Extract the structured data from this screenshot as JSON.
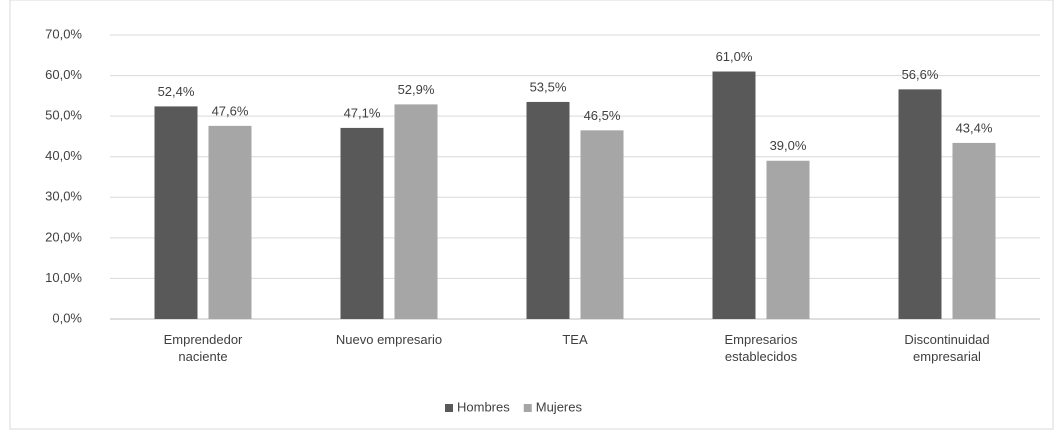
{
  "chart_data": {
    "type": "bar",
    "categories": [
      "Emprendedor naciente",
      "Nuevo empresario",
      "TEA",
      "Empresarios establecidos",
      "Discontinuidad empresarial"
    ],
    "series": [
      {
        "name": "Hombres",
        "color": "#595959",
        "values": [
          52.4,
          47.1,
          53.5,
          61.0,
          56.6
        ],
        "value_labels": [
          "52,4%",
          "47,1%",
          "53,5%",
          "61,0%",
          "56,6%"
        ]
      },
      {
        "name": "Mujeres",
        "color": "#a6a6a6",
        "values": [
          47.6,
          52.9,
          46.5,
          39.0,
          43.4
        ],
        "value_labels": [
          "47,6%",
          "52,9%",
          "46,5%",
          "39,0%",
          "43,4%"
        ]
      }
    ],
    "ylim": [
      0,
      70
    ],
    "yticks": [
      {
        "value": 0,
        "label": "0,0%"
      },
      {
        "value": 10,
        "label": "10,0%"
      },
      {
        "value": 20,
        "label": "20,0%"
      },
      {
        "value": 30,
        "label": "30,0%"
      },
      {
        "value": 40,
        "label": "40,0%"
      },
      {
        "value": 50,
        "label": "50,0%"
      },
      {
        "value": 60,
        "label": "60,0%"
      },
      {
        "value": 70,
        "label": "70,0%"
      }
    ],
    "grid": true,
    "legend": "bottom"
  }
}
